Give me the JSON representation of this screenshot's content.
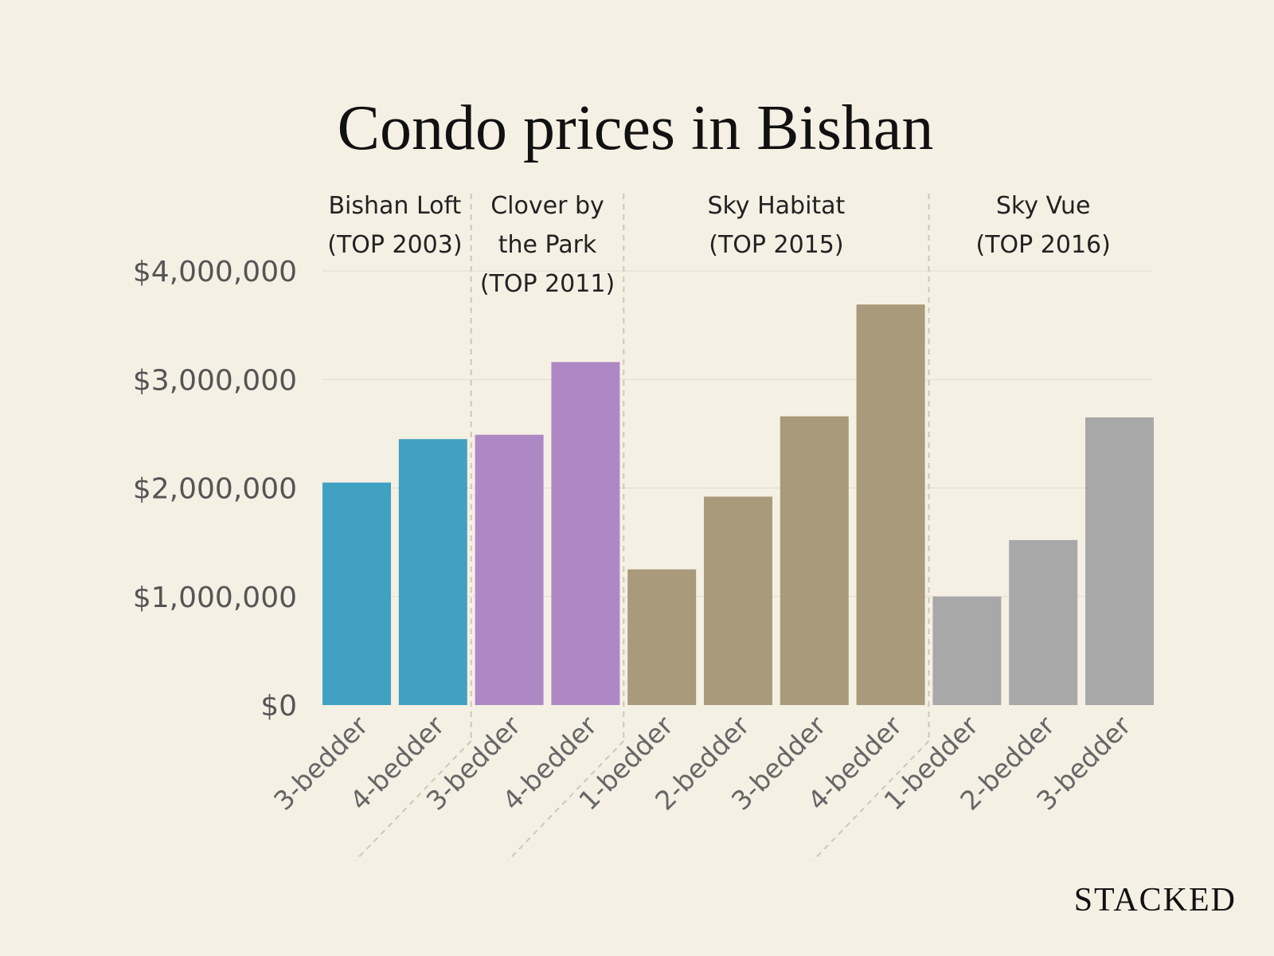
{
  "chart_data": {
    "type": "bar",
    "title": "Condo prices in Bishan",
    "ylim": [
      0,
      4000000
    ],
    "yticks": [
      {
        "value": 0,
        "label": "$0"
      },
      {
        "value": 1000000,
        "label": "$1,000,000"
      },
      {
        "value": 2000000,
        "label": "$2,000,000"
      },
      {
        "value": 3000000,
        "label": "$3,000,000"
      },
      {
        "value": 4000000,
        "label": "$4,000,000"
      }
    ],
    "grid": true,
    "groups": [
      {
        "lines": [
          "Bishan Loft",
          "(TOP 2003)"
        ],
        "color": "#41a1c2",
        "categories": [
          "3-bedder",
          "4-bedder"
        ],
        "values": [
          2050000,
          2450000
        ]
      },
      {
        "lines": [
          "Clover by",
          "the Park",
          "(TOP 2011)"
        ],
        "color": "#ad88c5",
        "categories": [
          "3-bedder",
          "4-bedder"
        ],
        "values": [
          2490000,
          3160000
        ]
      },
      {
        "lines": [
          "Sky Habitat",
          "(TOP 2015)"
        ],
        "color": "#a89a7a",
        "categories": [
          "1-bedder",
          "2-bedder",
          "3-bedder",
          "4-bedder"
        ],
        "values": [
          1250000,
          1920000,
          2660000,
          3690000
        ]
      },
      {
        "lines": [
          "Sky Vue",
          "(TOP 2016)"
        ],
        "color": "#a8a8a8",
        "categories": [
          "1-bedder",
          "2-bedder",
          "3-bedder"
        ],
        "values": [
          1000000,
          1520000,
          2650000
        ]
      }
    ]
  },
  "brand": "STACKED",
  "colors": {
    "background": "#f5f0e4",
    "grid": "#e3ddd0",
    "separator": "#cfc6b6"
  }
}
